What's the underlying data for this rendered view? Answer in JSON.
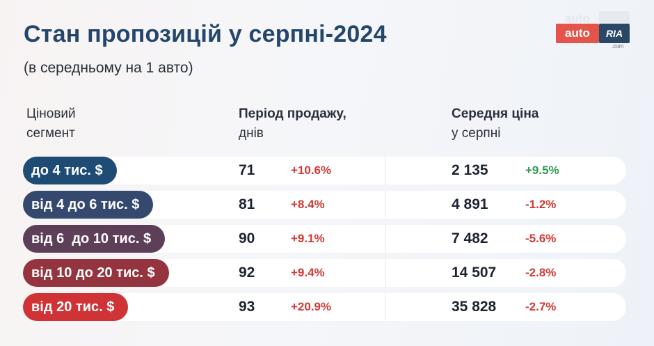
{
  "title": "Стан пропозицій у серпні-2024",
  "subtitle": "(в середньому на 1 авто)",
  "headers": {
    "segment_line1": "Ціновий",
    "segment_line2": "сегмент",
    "days_line1": "Період продажу,",
    "days_line2": "днів",
    "price_line1": "Середня ціна",
    "price_line2": "у серпні"
  },
  "logo": {
    "auto": "auto",
    "ria": "RIA",
    "com": ".com"
  },
  "colors": {
    "title": "#24466b",
    "positive": "#2f9a52",
    "negative": "#d23a35",
    "logo_red": "#e4544a",
    "logo_navy": "#2a4866"
  },
  "rows": [
    {
      "segment": "до 4 тис. $",
      "days": "71",
      "days_change": "+10.6%",
      "price": "2 135",
      "price_change": "+9.5%",
      "pill_color": "#1e4c74",
      "days_change_color": "#d23a35",
      "price_change_color": "#2f9a52"
    },
    {
      "segment": "від 4 до 6 тис. $",
      "days": "81",
      "days_change": "+8.4%",
      "price": "4 891",
      "price_change": "-1.2%",
      "pill_color": "#35496e",
      "days_change_color": "#d23a35",
      "price_change_color": "#d23a35"
    },
    {
      "segment": "від 6  до 10 тис. $",
      "days": "90",
      "days_change": "+9.1%",
      "price": "7 482",
      "price_change": "-5.6%",
      "pill_color": "#5e3f58",
      "days_change_color": "#d23a35",
      "price_change_color": "#d23a35"
    },
    {
      "segment": "від 10 до 20 тис. $",
      "days": "92",
      "days_change": "+9.4%",
      "price": "14 507",
      "price_change": "-2.8%",
      "pill_color": "#94343e",
      "days_change_color": "#d23a35",
      "price_change_color": "#d23a35"
    },
    {
      "segment": "від 20 тис. $",
      "days": "93",
      "days_change": "+20.9%",
      "price": "35 828",
      "price_change": "-2.7%",
      "pill_color": "#cf3335",
      "days_change_color": "#d23a35",
      "price_change_color": "#d23a35"
    }
  ]
}
